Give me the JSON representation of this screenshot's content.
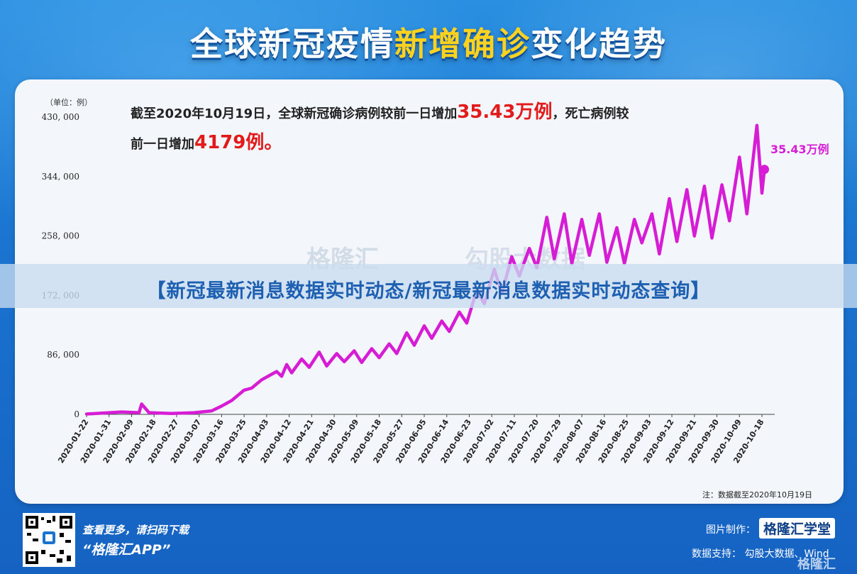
{
  "title": {
    "part1": "全球新冠疫情",
    "part2": "新增确诊",
    "part3": "变化趋势"
  },
  "headline": {
    "line1_prefix": "截至2020年10月19日，全球新冠确诊病例较前一日增加",
    "line1_value": "35.43万例",
    "line1_suffix": "，死亡病例较",
    "line2_prefix": "前一日增加",
    "line2_value": "4179例。"
  },
  "banner": "【新冠最新消息数据实时动态/新冠最新消息数据实时动态查询】",
  "watermark": {
    "left": "格隆汇",
    "right": "勾股大数据"
  },
  "note": "注：数据截至2020年10月19日",
  "footer": {
    "promo_line1": "查看更多，请扫码下载",
    "promo_line2": "“格隆汇APP”",
    "credit_label": "图片制作：",
    "credit_brand": "格隆汇学堂",
    "data_support": "数据支持：  勾股大数据、Wind",
    "corner_logo": "格隆汇"
  },
  "colors": {
    "series": "#d71cd6",
    "title_highlight": "#ffd21f",
    "headline_value": "#e21a1a"
  },
  "chart_data": {
    "type": "line",
    "title": "全球新冠疫情新增确诊变化趋势",
    "unit_label": "（单位：例）",
    "ylim": [
      0,
      430000
    ],
    "yticks": [
      0,
      86000,
      172000,
      258000,
      344000,
      430000
    ],
    "ytick_labels": [
      "0",
      "86, 000",
      "172, 000",
      "258, 000",
      "344, 000",
      "430, 000"
    ],
    "xtick_labels": [
      "2020-01-22",
      "2020-01-31",
      "2020-02-09",
      "2020-02-18",
      "2020-02-27",
      "2020-03-07",
      "2020-03-16",
      "2020-03-25",
      "2020-04-03",
      "2020-04-12",
      "2020-04-21",
      "2020-04-30",
      "2020-05-09",
      "2020-05-18",
      "2020-05-27",
      "2020-06-05",
      "2020-06-14",
      "2020-06-23",
      "2020-07-02",
      "2020-07-11",
      "2020-07-20",
      "2020-07-29",
      "2020-08-07",
      "2020-08-16",
      "2020-08-25",
      "2020-09-03",
      "2020-09-12",
      "2020-09-21",
      "2020-09-30",
      "2020-10-09",
      "2020-10-18"
    ],
    "last_point_label": "35.43万例",
    "series": [
      {
        "name": "",
        "points": [
          [
            "2020-01-22",
            500
          ],
          [
            "2020-02-05",
            3500
          ],
          [
            "2020-02-12",
            2500
          ],
          [
            "2020-02-13",
            15000
          ],
          [
            "2020-02-16",
            2500
          ],
          [
            "2020-02-25",
            1200
          ],
          [
            "2020-03-05",
            2500
          ],
          [
            "2020-03-12",
            5000
          ],
          [
            "2020-03-16",
            12000
          ],
          [
            "2020-03-20",
            20000
          ],
          [
            "2020-03-25",
            35000
          ],
          [
            "2020-03-28",
            38000
          ],
          [
            "2020-04-01",
            50000
          ],
          [
            "2020-04-05",
            58000
          ],
          [
            "2020-04-07",
            62000
          ],
          [
            "2020-04-09",
            55000
          ],
          [
            "2020-04-11",
            72000
          ],
          [
            "2020-04-13",
            60000
          ],
          [
            "2020-04-17",
            80000
          ],
          [
            "2020-04-20",
            68000
          ],
          [
            "2020-04-24",
            90000
          ],
          [
            "2020-04-27",
            70000
          ],
          [
            "2020-05-01",
            88000
          ],
          [
            "2020-05-04",
            76000
          ],
          [
            "2020-05-08",
            92000
          ],
          [
            "2020-05-11",
            75000
          ],
          [
            "2020-05-15",
            95000
          ],
          [
            "2020-05-18",
            82000
          ],
          [
            "2020-05-22",
            102000
          ],
          [
            "2020-05-25",
            88000
          ],
          [
            "2020-05-29",
            118000
          ],
          [
            "2020-06-01",
            100000
          ],
          [
            "2020-06-05",
            128000
          ],
          [
            "2020-06-08",
            110000
          ],
          [
            "2020-06-12",
            135000
          ],
          [
            "2020-06-15",
            120000
          ],
          [
            "2020-06-19",
            148000
          ],
          [
            "2020-06-22",
            132000
          ],
          [
            "2020-06-26",
            180000
          ],
          [
            "2020-06-29",
            160000
          ],
          [
            "2020-07-03",
            210000
          ],
          [
            "2020-07-06",
            175000
          ],
          [
            "2020-07-10",
            228000
          ],
          [
            "2020-07-13",
            200000
          ],
          [
            "2020-07-17",
            240000
          ],
          [
            "2020-07-20",
            212000
          ],
          [
            "2020-07-24",
            285000
          ],
          [
            "2020-07-27",
            225000
          ],
          [
            "2020-07-31",
            290000
          ],
          [
            "2020-08-03",
            218000
          ],
          [
            "2020-08-07",
            282000
          ],
          [
            "2020-08-10",
            230000
          ],
          [
            "2020-08-14",
            290000
          ],
          [
            "2020-08-17",
            220000
          ],
          [
            "2020-08-21",
            270000
          ],
          [
            "2020-08-24",
            218000
          ],
          [
            "2020-08-28",
            282000
          ],
          [
            "2020-08-31",
            248000
          ],
          [
            "2020-09-04",
            290000
          ],
          [
            "2020-09-07",
            232000
          ],
          [
            "2020-09-11",
            312000
          ],
          [
            "2020-09-14",
            250000
          ],
          [
            "2020-09-18",
            325000
          ],
          [
            "2020-09-21",
            258000
          ],
          [
            "2020-09-25",
            330000
          ],
          [
            "2020-09-28",
            255000
          ],
          [
            "2020-10-02",
            332000
          ],
          [
            "2020-10-05",
            280000
          ],
          [
            "2020-10-09",
            372000
          ],
          [
            "2020-10-12",
            290000
          ],
          [
            "2020-10-16",
            418000
          ],
          [
            "2020-10-18",
            320000
          ],
          [
            "2020-10-19",
            354300
          ]
        ]
      }
    ]
  }
}
